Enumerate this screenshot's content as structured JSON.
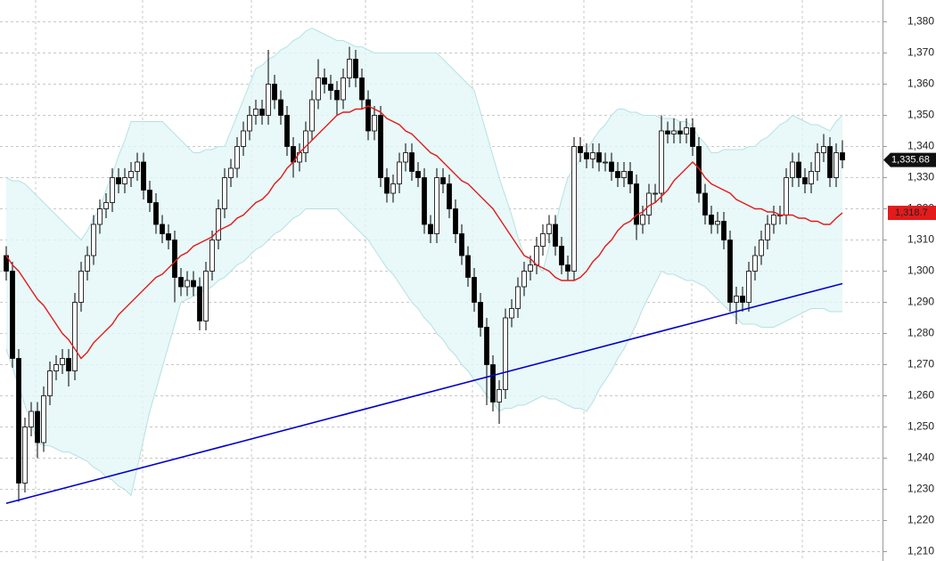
{
  "chart_data": {
    "type": "candlestick",
    "open": [
      1305,
      1300,
      1272,
      1232,
      1250,
      1255,
      1245,
      1260,
      1268,
      1270,
      1272,
      1268,
      1290,
      1300,
      1305,
      1315,
      1320,
      1322,
      1330,
      1328,
      1330,
      1332,
      1335,
      1326,
      1322,
      1315,
      1312,
      1310,
      1298,
      1295,
      1297,
      1295,
      1284,
      1300,
      1310,
      1320,
      1330,
      1333,
      1340,
      1345,
      1350,
      1352,
      1350,
      1360,
      1355,
      1350,
      1340,
      1335,
      1338,
      1345,
      1355,
      1362,
      1360,
      1358,
      1355,
      1362,
      1368,
      1362,
      1355,
      1345,
      1350,
      1330,
      1325,
      1328,
      1335,
      1338,
      1332,
      1330,
      1315,
      1312,
      1330,
      1328,
      1320,
      1312,
      1305,
      1298,
      1290,
      1282,
      1270,
      1258,
      1262,
      1285,
      1288,
      1295,
      1300,
      1302,
      1308,
      1312,
      1315,
      1308,
      1302,
      1300,
      1340,
      1338,
      1336,
      1338,
      1335,
      1335,
      1332,
      1330,
      1332,
      1328,
      1315,
      1318,
      1325,
      1325,
      1345,
      1344,
      1345,
      1344,
      1346,
      1340,
      1325,
      1318,
      1315,
      1316,
      1310,
      1290,
      1292,
      1290,
      1300,
      1305,
      1310,
      1315,
      1318,
      1318,
      1330,
      1335,
      1330,
      1328,
      1332,
      1338,
      1340,
      1330,
      1338
    ],
    "high": [
      1308,
      1303,
      1275,
      1253,
      1258,
      1258,
      1263,
      1271,
      1273,
      1275,
      1275,
      1293,
      1303,
      1308,
      1318,
      1323,
      1325,
      1333,
      1333,
      1333,
      1335,
      1338,
      1338,
      1329,
      1325,
      1318,
      1315,
      1313,
      1301,
      1300,
      1300,
      1298,
      1303,
      1313,
      1323,
      1333,
      1336,
      1343,
      1348,
      1353,
      1355,
      1355,
      1371,
      1363,
      1358,
      1353,
      1343,
      1341,
      1348,
      1358,
      1368,
      1365,
      1363,
      1361,
      1365,
      1372,
      1371,
      1365,
      1358,
      1353,
      1353,
      1333,
      1331,
      1338,
      1341,
      1341,
      1335,
      1333,
      1318,
      1333,
      1333,
      1331,
      1323,
      1315,
      1308,
      1301,
      1293,
      1285,
      1273,
      1265,
      1288,
      1291,
      1298,
      1303,
      1305,
      1311,
      1315,
      1318,
      1318,
      1311,
      1305,
      1343,
      1343,
      1341,
      1341,
      1341,
      1338,
      1338,
      1335,
      1335,
      1335,
      1331,
      1321,
      1328,
      1328,
      1350,
      1348,
      1349,
      1348,
      1349,
      1349,
      1343,
      1328,
      1321,
      1319,
      1319,
      1313,
      1295,
      1295,
      1303,
      1308,
      1313,
      1318,
      1321,
      1321,
      1333,
      1338,
      1338,
      1333,
      1335,
      1341,
      1344,
      1343,
      1341,
      1342
    ],
    "low": [
      1297,
      1269,
      1226,
      1229,
      1247,
      1240,
      1242,
      1257,
      1265,
      1267,
      1263,
      1265,
      1287,
      1297,
      1302,
      1312,
      1317,
      1319,
      1325,
      1325,
      1327,
      1329,
      1323,
      1319,
      1312,
      1309,
      1307,
      1290,
      1292,
      1292,
      1292,
      1281,
      1281,
      1297,
      1307,
      1317,
      1327,
      1330,
      1337,
      1342,
      1347,
      1347,
      1347,
      1352,
      1347,
      1337,
      1330,
      1332,
      1335,
      1342,
      1352,
      1357,
      1355,
      1350,
      1352,
      1359,
      1359,
      1352,
      1342,
      1342,
      1327,
      1322,
      1322,
      1325,
      1332,
      1329,
      1327,
      1312,
      1309,
      1309,
      1325,
      1317,
      1309,
      1302,
      1295,
      1287,
      1279,
      1257,
      1255,
      1251,
      1259,
      1282,
      1285,
      1292,
      1297,
      1299,
      1305,
      1309,
      1305,
      1299,
      1297,
      1297,
      1335,
      1333,
      1333,
      1332,
      1332,
      1329,
      1327,
      1327,
      1325,
      1310,
      1312,
      1315,
      1322,
      1322,
      1341,
      1341,
      1341,
      1341,
      1337,
      1322,
      1315,
      1312,
      1312,
      1307,
      1287,
      1283,
      1287,
      1287,
      1297,
      1302,
      1307,
      1312,
      1315,
      1315,
      1327,
      1327,
      1325,
      1325,
      1329,
      1335,
      1327,
      1327,
      1333
    ],
    "close": [
      1300,
      1272,
      1232,
      1250,
      1255,
      1245,
      1260,
      1268,
      1270,
      1272,
      1268,
      1290,
      1300,
      1305,
      1315,
      1320,
      1322,
      1330,
      1328,
      1330,
      1332,
      1335,
      1326,
      1322,
      1315,
      1312,
      1310,
      1298,
      1295,
      1297,
      1295,
      1284,
      1300,
      1310,
      1320,
      1330,
      1333,
      1340,
      1345,
      1350,
      1352,
      1350,
      1360,
      1355,
      1350,
      1340,
      1335,
      1338,
      1345,
      1355,
      1362,
      1360,
      1358,
      1355,
      1362,
      1368,
      1362,
      1355,
      1345,
      1350,
      1330,
      1325,
      1328,
      1335,
      1338,
      1332,
      1330,
      1315,
      1312,
      1330,
      1328,
      1320,
      1312,
      1305,
      1298,
      1290,
      1282,
      1270,
      1258,
      1262,
      1285,
      1288,
      1295,
      1300,
      1302,
      1308,
      1312,
      1315,
      1308,
      1302,
      1300,
      1340,
      1338,
      1336,
      1338,
      1335,
      1335,
      1332,
      1330,
      1332,
      1328,
      1315,
      1318,
      1325,
      1325,
      1345,
      1344,
      1345,
      1344,
      1346,
      1340,
      1325,
      1318,
      1315,
      1316,
      1310,
      1290,
      1292,
      1290,
      1300,
      1305,
      1310,
      1315,
      1318,
      1318,
      1330,
      1335,
      1330,
      1328,
      1332,
      1338,
      1340,
      1330,
      1338,
      1335.68
    ],
    "up_color": "#ffffff",
    "down_color": "#000000",
    "ma": [
      1305,
      1302,
      1300,
      1297,
      1294,
      1291,
      1289,
      1286,
      1283,
      1280,
      1278,
      1275,
      1272,
      1274,
      1277,
      1279,
      1281,
      1283,
      1286,
      1288,
      1290,
      1292,
      1294,
      1296,
      1298,
      1299,
      1301,
      1303,
      1305,
      1306,
      1308,
      1309,
      1310,
      1311,
      1313,
      1314,
      1315,
      1317,
      1318,
      1320,
      1322,
      1323,
      1325,
      1328,
      1330,
      1333,
      1335,
      1338,
      1340,
      1342,
      1344,
      1346,
      1348,
      1350,
      1351,
      1351,
      1352,
      1352,
      1353,
      1352,
      1351,
      1349,
      1348,
      1347,
      1345,
      1344,
      1342,
      1340,
      1338,
      1337,
      1335,
      1333,
      1331,
      1329,
      1328,
      1326,
      1324,
      1322,
      1320,
      1317,
      1314,
      1311,
      1308,
      1305,
      1304,
      1302,
      1301,
      1300,
      1298,
      1297,
      1297,
      1297,
      1298,
      1300,
      1303,
      1305,
      1308,
      1310,
      1313,
      1315,
      1316,
      1318,
      1319,
      1321,
      1322,
      1324,
      1326,
      1329,
      1331,
      1333,
      1335,
      1333,
      1330,
      1328,
      1327,
      1326,
      1325,
      1323,
      1322,
      1321,
      1320,
      1320,
      1319,
      1319,
      1318,
      1318,
      1318,
      1317,
      1317,
      1316,
      1316,
      1315,
      1315,
      1317,
      1318.7
    ],
    "ma_color": "#e31b1b",
    "band_upper": [
      1330,
      1329,
      1329,
      1328,
      1326,
      1324,
      1322,
      1320,
      1318,
      1316,
      1314,
      1312,
      1310,
      1313,
      1317,
      1320,
      1326,
      1331,
      1337,
      1342,
      1348,
      1348,
      1348,
      1348,
      1348,
      1348,
      1346,
      1344,
      1342,
      1340,
      1338,
      1338,
      1339,
      1339,
      1340,
      1340,
      1345,
      1350,
      1355,
      1360,
      1365,
      1366,
      1368,
      1369,
      1371,
      1372,
      1374,
      1375,
      1377,
      1378,
      1377,
      1376,
      1375,
      1374,
      1374,
      1373,
      1372,
      1372,
      1371,
      1370,
      1370,
      1370,
      1370,
      1370,
      1370,
      1370,
      1370,
      1370,
      1370,
      1370,
      1368,
      1366,
      1364,
      1362,
      1360,
      1358,
      1351,
      1344,
      1337,
      1330,
      1324,
      1318,
      1311,
      1305,
      1303,
      1302,
      1300,
      1308,
      1315,
      1323,
      1330,
      1333,
      1336,
      1339,
      1342,
      1345,
      1347,
      1350,
      1352,
      1352,
      1351,
      1351,
      1350,
      1350,
      1350,
      1349,
      1349,
      1349,
      1348,
      1348,
      1346,
      1343,
      1341,
      1338,
      1338,
      1339,
      1339,
      1339,
      1339,
      1340,
      1340,
      1342,
      1343,
      1345,
      1347,
      1348,
      1350,
      1349,
      1348,
      1347,
      1347,
      1346,
      1345,
      1348,
      1350
    ],
    "band_lower": [
      1275,
      1269,
      1263,
      1257,
      1251,
      1245,
      1244,
      1244,
      1243,
      1242,
      1242,
      1241,
      1240,
      1239,
      1237,
      1236,
      1234,
      1233,
      1231,
      1230,
      1228,
      1237,
      1246,
      1255,
      1262,
      1269,
      1276,
      1283,
      1290,
      1291,
      1292,
      1293,
      1294,
      1295,
      1297,
      1298,
      1300,
      1302,
      1303,
      1305,
      1307,
      1308,
      1310,
      1312,
      1313,
      1315,
      1317,
      1318,
      1320,
      1320,
      1320,
      1320,
      1320,
      1320,
      1318,
      1316,
      1314,
      1312,
      1310,
      1307,
      1304,
      1301,
      1299,
      1296,
      1293,
      1290,
      1288,
      1285,
      1283,
      1280,
      1278,
      1275,
      1273,
      1270,
      1268,
      1265,
      1263,
      1260,
      1258,
      1255,
      1256,
      1256,
      1257,
      1257,
      1258,
      1259,
      1260,
      1259,
      1259,
      1258,
      1257,
      1256,
      1256,
      1255,
      1258,
      1262,
      1265,
      1268,
      1272,
      1275,
      1279,
      1283,
      1288,
      1292,
      1296,
      1300,
      1299,
      1299,
      1298,
      1297,
      1297,
      1296,
      1295,
      1293,
      1291,
      1289,
      1287,
      1285,
      1283,
      1283,
      1283,
      1282,
      1282,
      1282,
      1283,
      1284,
      1285,
      1286,
      1287,
      1288,
      1288,
      1288,
      1287,
      1287,
      1287
    ],
    "band_color": "#e4f6f6",
    "band_edge_color": "#b6e1e5",
    "trendline": [
      1225.5,
      1296
    ],
    "trend_color": "#0000cc",
    "ylim": [
      1207,
      1387
    ],
    "yticks": [
      {
        "value": 1210,
        "label": "1,210"
      },
      {
        "value": 1220,
        "label": "1,220"
      },
      {
        "value": 1230,
        "label": "1,230"
      },
      {
        "value": 1240,
        "label": "1,240"
      },
      {
        "value": 1250,
        "label": "1,250"
      },
      {
        "value": 1260,
        "label": "1,260"
      },
      {
        "value": 1270,
        "label": "1,270"
      },
      {
        "value": 1280,
        "label": "1,280"
      },
      {
        "value": 1290,
        "label": "1,290"
      },
      {
        "value": 1300,
        "label": "1,300"
      },
      {
        "value": 1310,
        "label": "1,310"
      },
      {
        "value": 1320,
        "label": "1,320"
      },
      {
        "value": 1330,
        "label": "1,330"
      },
      {
        "value": 1340,
        "label": "1,340"
      },
      {
        "value": 1350,
        "label": "1,350"
      },
      {
        "value": 1360,
        "label": "1,360"
      },
      {
        "value": 1370,
        "label": "1,370"
      },
      {
        "value": 1380,
        "label": "1,380"
      }
    ],
    "grid": true,
    "last_price": {
      "value": 1335.68,
      "label": "1,335.68"
    },
    "ma_last": {
      "value": 1318.7,
      "label": "1,318.7"
    }
  }
}
